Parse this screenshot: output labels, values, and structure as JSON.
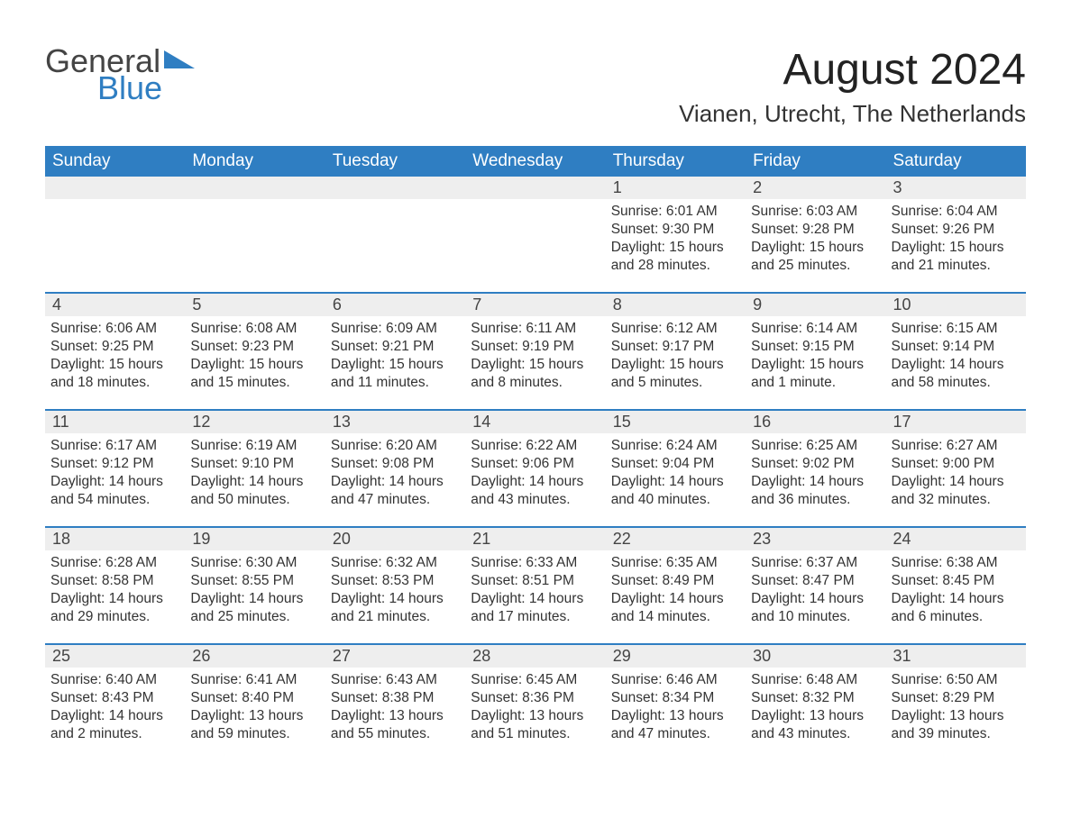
{
  "logo": {
    "word1": "General",
    "word2": "Blue",
    "tri_color": "#2f7ec2",
    "text_dark": "#444444"
  },
  "title": "August 2024",
  "location": "Vianen, Utrecht, The Netherlands",
  "colors": {
    "header_bg": "#2f7ec2",
    "header_text": "#ffffff",
    "daynum_bg": "#eeeeee",
    "week_border": "#2f7ec2",
    "body_text": "#333333",
    "background": "#ffffff"
  },
  "typography": {
    "title_fontsize": 48,
    "location_fontsize": 26,
    "weekday_fontsize": 19,
    "daynum_fontsize": 18,
    "body_fontsize": 15.5,
    "font_family": "Arial"
  },
  "weekdays": [
    "Sunday",
    "Monday",
    "Tuesday",
    "Wednesday",
    "Thursday",
    "Friday",
    "Saturday"
  ],
  "weeks": [
    [
      {
        "num": "",
        "lines": []
      },
      {
        "num": "",
        "lines": []
      },
      {
        "num": "",
        "lines": []
      },
      {
        "num": "",
        "lines": []
      },
      {
        "num": "1",
        "lines": [
          "Sunrise: 6:01 AM",
          "Sunset: 9:30 PM",
          "Daylight: 15 hours and 28 minutes."
        ]
      },
      {
        "num": "2",
        "lines": [
          "Sunrise: 6:03 AM",
          "Sunset: 9:28 PM",
          "Daylight: 15 hours and 25 minutes."
        ]
      },
      {
        "num": "3",
        "lines": [
          "Sunrise: 6:04 AM",
          "Sunset: 9:26 PM",
          "Daylight: 15 hours and 21 minutes."
        ]
      }
    ],
    [
      {
        "num": "4",
        "lines": [
          "Sunrise: 6:06 AM",
          "Sunset: 9:25 PM",
          "Daylight: 15 hours and 18 minutes."
        ]
      },
      {
        "num": "5",
        "lines": [
          "Sunrise: 6:08 AM",
          "Sunset: 9:23 PM",
          "Daylight: 15 hours and 15 minutes."
        ]
      },
      {
        "num": "6",
        "lines": [
          "Sunrise: 6:09 AM",
          "Sunset: 9:21 PM",
          "Daylight: 15 hours and 11 minutes."
        ]
      },
      {
        "num": "7",
        "lines": [
          "Sunrise: 6:11 AM",
          "Sunset: 9:19 PM",
          "Daylight: 15 hours and 8 minutes."
        ]
      },
      {
        "num": "8",
        "lines": [
          "Sunrise: 6:12 AM",
          "Sunset: 9:17 PM",
          "Daylight: 15 hours and 5 minutes."
        ]
      },
      {
        "num": "9",
        "lines": [
          "Sunrise: 6:14 AM",
          "Sunset: 9:15 PM",
          "Daylight: 15 hours and 1 minute."
        ]
      },
      {
        "num": "10",
        "lines": [
          "Sunrise: 6:15 AM",
          "Sunset: 9:14 PM",
          "Daylight: 14 hours and 58 minutes."
        ]
      }
    ],
    [
      {
        "num": "11",
        "lines": [
          "Sunrise: 6:17 AM",
          "Sunset: 9:12 PM",
          "Daylight: 14 hours and 54 minutes."
        ]
      },
      {
        "num": "12",
        "lines": [
          "Sunrise: 6:19 AM",
          "Sunset: 9:10 PM",
          "Daylight: 14 hours and 50 minutes."
        ]
      },
      {
        "num": "13",
        "lines": [
          "Sunrise: 6:20 AM",
          "Sunset: 9:08 PM",
          "Daylight: 14 hours and 47 minutes."
        ]
      },
      {
        "num": "14",
        "lines": [
          "Sunrise: 6:22 AM",
          "Sunset: 9:06 PM",
          "Daylight: 14 hours and 43 minutes."
        ]
      },
      {
        "num": "15",
        "lines": [
          "Sunrise: 6:24 AM",
          "Sunset: 9:04 PM",
          "Daylight: 14 hours and 40 minutes."
        ]
      },
      {
        "num": "16",
        "lines": [
          "Sunrise: 6:25 AM",
          "Sunset: 9:02 PM",
          "Daylight: 14 hours and 36 minutes."
        ]
      },
      {
        "num": "17",
        "lines": [
          "Sunrise: 6:27 AM",
          "Sunset: 9:00 PM",
          "Daylight: 14 hours and 32 minutes."
        ]
      }
    ],
    [
      {
        "num": "18",
        "lines": [
          "Sunrise: 6:28 AM",
          "Sunset: 8:58 PM",
          "Daylight: 14 hours and 29 minutes."
        ]
      },
      {
        "num": "19",
        "lines": [
          "Sunrise: 6:30 AM",
          "Sunset: 8:55 PM",
          "Daylight: 14 hours and 25 minutes."
        ]
      },
      {
        "num": "20",
        "lines": [
          "Sunrise: 6:32 AM",
          "Sunset: 8:53 PM",
          "Daylight: 14 hours and 21 minutes."
        ]
      },
      {
        "num": "21",
        "lines": [
          "Sunrise: 6:33 AM",
          "Sunset: 8:51 PM",
          "Daylight: 14 hours and 17 minutes."
        ]
      },
      {
        "num": "22",
        "lines": [
          "Sunrise: 6:35 AM",
          "Sunset: 8:49 PM",
          "Daylight: 14 hours and 14 minutes."
        ]
      },
      {
        "num": "23",
        "lines": [
          "Sunrise: 6:37 AM",
          "Sunset: 8:47 PM",
          "Daylight: 14 hours and 10 minutes."
        ]
      },
      {
        "num": "24",
        "lines": [
          "Sunrise: 6:38 AM",
          "Sunset: 8:45 PM",
          "Daylight: 14 hours and 6 minutes."
        ]
      }
    ],
    [
      {
        "num": "25",
        "lines": [
          "Sunrise: 6:40 AM",
          "Sunset: 8:43 PM",
          "Daylight: 14 hours and 2 minutes."
        ]
      },
      {
        "num": "26",
        "lines": [
          "Sunrise: 6:41 AM",
          "Sunset: 8:40 PM",
          "Daylight: 13 hours and 59 minutes."
        ]
      },
      {
        "num": "27",
        "lines": [
          "Sunrise: 6:43 AM",
          "Sunset: 8:38 PM",
          "Daylight: 13 hours and 55 minutes."
        ]
      },
      {
        "num": "28",
        "lines": [
          "Sunrise: 6:45 AM",
          "Sunset: 8:36 PM",
          "Daylight: 13 hours and 51 minutes."
        ]
      },
      {
        "num": "29",
        "lines": [
          "Sunrise: 6:46 AM",
          "Sunset: 8:34 PM",
          "Daylight: 13 hours and 47 minutes."
        ]
      },
      {
        "num": "30",
        "lines": [
          "Sunrise: 6:48 AM",
          "Sunset: 8:32 PM",
          "Daylight: 13 hours and 43 minutes."
        ]
      },
      {
        "num": "31",
        "lines": [
          "Sunrise: 6:50 AM",
          "Sunset: 8:29 PM",
          "Daylight: 13 hours and 39 minutes."
        ]
      }
    ]
  ]
}
